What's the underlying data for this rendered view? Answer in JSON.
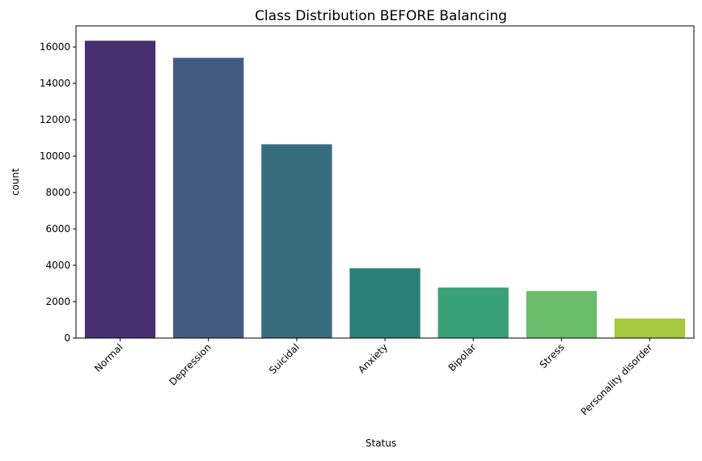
{
  "chart_data": {
    "type": "bar",
    "title": "Class Distribution BEFORE Balancing",
    "xlabel": "Status",
    "ylabel": "count",
    "categories": [
      "Normal",
      "Depression",
      "Suicidal",
      "Anxiety",
      "Bipolar",
      "Stress",
      "Personality disorder"
    ],
    "values": [
      16343,
      15404,
      10652,
      3841,
      2777,
      2587,
      1077
    ],
    "colors": [
      "#482f6f",
      "#435a84",
      "#386d80",
      "#2b8179",
      "#39a078",
      "#6abd6a",
      "#a5c83e"
    ],
    "ylim": [
      0,
      17160
    ],
    "yticks": [
      0,
      2000,
      4000,
      6000,
      8000,
      10000,
      12000,
      14000,
      16000
    ],
    "grid": false
  }
}
